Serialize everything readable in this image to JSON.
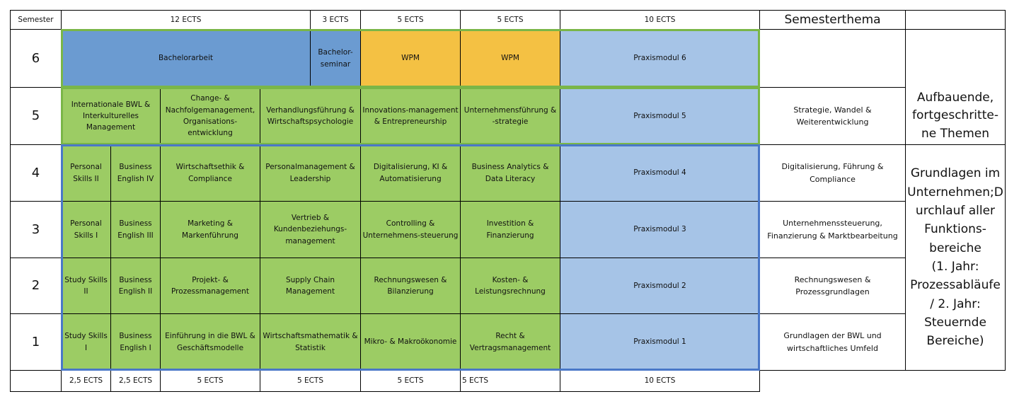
{
  "header": [
    "Semester",
    "12 ECTS",
    "3 ECTS",
    "5 ECTS",
    "5 ECTS",
    "10 ECTS",
    "Semesterthema"
  ],
  "rows": [
    {
      "semester": "6",
      "cells": [
        "Bachelorarbeit",
        "Bachelor-seminar",
        "WPM",
        "WPM",
        "Praxismodul 6"
      ]
    },
    {
      "semester": "5",
      "cells": [
        "Internationale BWL & Interkulturelles Management",
        "Change- & Nachfolgemanagement, Organisations-entwicklung",
        "Verhandlungsführung & Wirtschaftspsychologie",
        "Innovations-management & Entrepreneurship",
        "Unternehmensführung & -strategie",
        "Praxismodul 5"
      ],
      "theme": "Strategie, Wandel & Weiterentwicklung"
    },
    {
      "semester": "4",
      "cells": [
        "Personal Skills II",
        "Business English IV",
        "Wirtschaftsethik & Compliance",
        "Personalmanagement & Leadership",
        "Digitalisierung, KI & Automatisierung",
        "Business Analytics & Data Literacy",
        "Praxismodul 4"
      ],
      "theme": "Digitalisierung, Führung & Compliance"
    },
    {
      "semester": "3",
      "cells": [
        "Personal Skills I",
        "Business English III",
        "Marketing & Markenführung",
        "Vertrieb & Kundenbeziehungs-management",
        "Controlling & Unternehmens-steuerung",
        "Investition & Finanzierung",
        "Praxismodul 3"
      ],
      "theme": "Unternehmenssteuerung, Finanzierung & Marktbearbeitung"
    },
    {
      "semester": "2",
      "cells": [
        "Study Skills II",
        "Business English II",
        "Projekt- & Prozessmanagement",
        "Supply Chain Management",
        "Rechnungswesen & Bilanzierung",
        "Kosten- & Leistungsrechnung",
        "Praxismodul 2"
      ],
      "theme": "Rechnungswesen & Prozessgrundlagen"
    },
    {
      "semester": "1",
      "cells": [
        "Study Skills I",
        "Business English I",
        "Einführung in die BWL & Geschäftsmodelle",
        "Wirtschaftsmathematik & Statistik",
        "Mikro- & Makroökonomie",
        "Recht & Vertragsmanagement",
        "Praxismodul 1"
      ],
      "theme": "Grundlagen der BWL und wirtschaftliches Umfeld"
    }
  ],
  "groups": [
    "Aufbauende,\nfortgeschritte-\nne Themen",
    "Grundlagen im\nUnternehmen;D\nurchlauf aller\nFunktions-\nbereiche\n(1. Jahr:\nProzessabläufe\n/ 2. Jahr:\nSteuernde\nBereiche)"
  ],
  "footer": [
    "2,5 ECTS",
    "2,5 ECTS",
    "5 ECTS",
    "5 ECTS",
    "5 ECTS",
    "5 ECTS",
    "10 ECTS"
  ]
}
